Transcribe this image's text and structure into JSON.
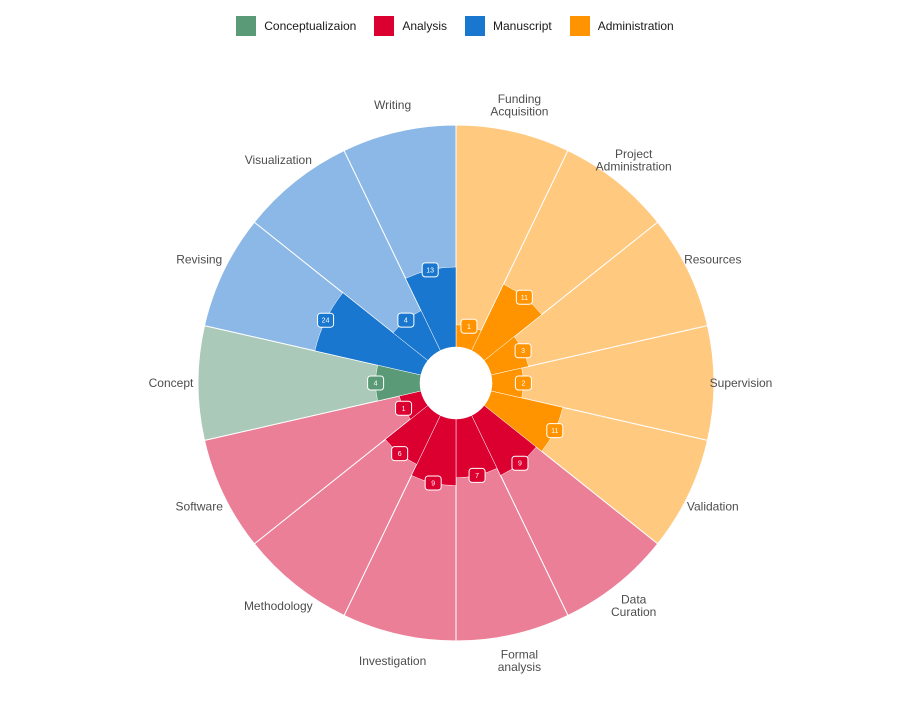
{
  "chart_data": {
    "type": "polar-bar",
    "legend_position": "top",
    "groups": [
      {
        "name": "Conceptualizaion",
        "color": "#5B9A77",
        "light_color": "#AAC9B9"
      },
      {
        "name": "Analysis",
        "color": "#DC0031",
        "light_color": "#EB7F97"
      },
      {
        "name": "Manuscript",
        "color": "#1A77CF",
        "light_color": "#8BB8E6"
      },
      {
        "name": "Administration",
        "color": "#FF9400",
        "light_color": "#FFC980"
      }
    ],
    "categories": [
      {
        "label": "Funding Acquisition",
        "lines": [
          "Funding",
          "Acquisition"
        ],
        "group": "Administration",
        "value": 1
      },
      {
        "label": "Project Administration",
        "lines": [
          "Project",
          "Administration"
        ],
        "group": "Administration",
        "value": 11
      },
      {
        "label": "Resources",
        "lines": [
          "Resources"
        ],
        "group": "Administration",
        "value": 3
      },
      {
        "label": "Supervision",
        "lines": [
          "Supervision"
        ],
        "group": "Administration",
        "value": 2
      },
      {
        "label": "Validation",
        "lines": [
          "Validation"
        ],
        "group": "Administration",
        "value": 11
      },
      {
        "label": "Data Curation",
        "lines": [
          "Data",
          "Curation"
        ],
        "group": "Analysis",
        "value": 9
      },
      {
        "label": "Formal analysis",
        "lines": [
          "Formal",
          "analysis"
        ],
        "group": "Analysis",
        "value": 7
      },
      {
        "label": "Investigation",
        "lines": [
          "Investigation"
        ],
        "group": "Analysis",
        "value": 9
      },
      {
        "label": "Methodology",
        "lines": [
          "Methodology"
        ],
        "group": "Analysis",
        "value": 6
      },
      {
        "label": "Software",
        "lines": [
          "Software"
        ],
        "group": "Analysis",
        "value": 1
      },
      {
        "label": "Concept",
        "lines": [
          "Concept"
        ],
        "group": "Conceptualizaion",
        "value": 4
      },
      {
        "label": "Revising",
        "lines": [
          "Revising"
        ],
        "group": "Manuscript",
        "value": 24
      },
      {
        "label": "Visualization",
        "lines": [
          "Visualization"
        ],
        "group": "Manuscript",
        "value": 4
      },
      {
        "label": "Writing",
        "lines": [
          "Writing"
        ],
        "group": "Manuscript",
        "value": 13
      }
    ],
    "scale": "square-root",
    "max_value": 100,
    "grid": false
  }
}
